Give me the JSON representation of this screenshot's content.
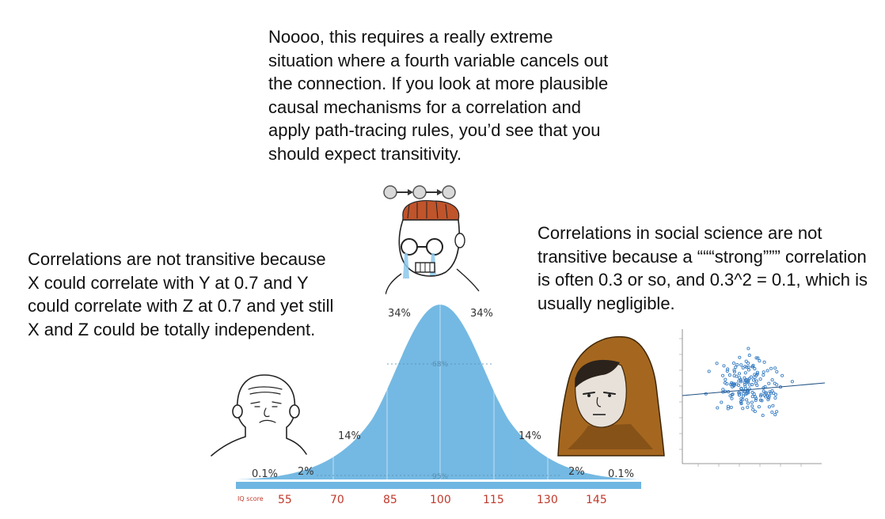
{
  "texts": {
    "center": "Noooo, this requires a really extreme situation where a fourth variable cancels out the connection. If you look at more plausible causal mechanisms for a correlation and apply path-tracing rules, you’d see that you should expect transitivity.",
    "left": "Correlations are not transitive because X could correlate with Y at 0.7 and Y could correlate with Z at 0.7 and yet still X and Z could be totally independent.",
    "right": "Correlations in social science are not transitive because a “““strong””” correlation is often 0.3 or so, and 0.3^2 = 0.1, which is usually negligible."
  },
  "bell_curve": {
    "segment_labels": [
      "0.1%",
      "2%",
      "14%",
      "34%",
      "34%",
      "14%",
      "2%",
      "0.1%"
    ],
    "inner_labels": [
      "68%",
      "95%"
    ],
    "axis_title": "IQ score",
    "ticks": [
      "55",
      "70",
      "85",
      "100",
      "115",
      "130",
      "145"
    ]
  },
  "icons": {
    "chain": "three-node-chain-icon",
    "left_character": "wojak-simple-character",
    "center_character": "crying-nerd-wojak-character",
    "right_character": "hooded-wojak-character",
    "scatter": "scatter-plot-thumbnail"
  },
  "colors": {
    "curve_fill": "#74b9e3",
    "axis_bar": "#6fb6e2",
    "tick_label": "#c0392b",
    "hood": "#a5671f"
  }
}
